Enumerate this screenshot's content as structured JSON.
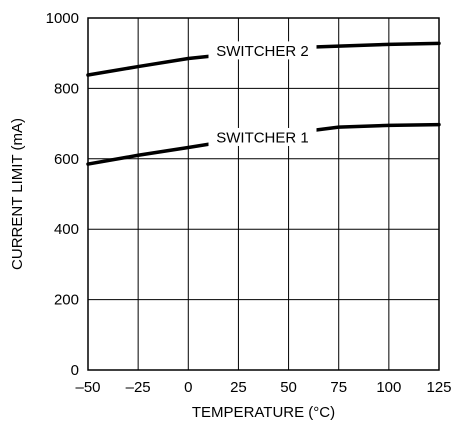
{
  "chart_data": {
    "type": "line",
    "title": "",
    "xlabel": "TEMPERATURE (°C)",
    "ylabel": "CURRENT LIMIT (mA)",
    "xlim": [
      -50,
      125
    ],
    "ylim": [
      0,
      1000
    ],
    "x_ticks": [
      -50,
      -25,
      0,
      25,
      50,
      75,
      100,
      125
    ],
    "x_tick_labels": [
      "–50",
      "–25",
      "0",
      "25",
      "50",
      "75",
      "100",
      "125"
    ],
    "y_ticks": [
      0,
      200,
      400,
      600,
      800,
      1000
    ],
    "y_tick_labels": [
      "0",
      "200",
      "400",
      "600",
      "800",
      "1000"
    ],
    "grid": true,
    "legend": "none",
    "series": [
      {
        "name": "SWITCHER 2",
        "x": [
          -50,
          -25,
          0,
          25,
          50,
          75,
          100,
          125
        ],
        "values": [
          838,
          862,
          885,
          900,
          915,
          920,
          925,
          928
        ]
      },
      {
        "name": "SWITCHER 1",
        "x": [
          -50,
          -25,
          0,
          25,
          50,
          75,
          100,
          125
        ],
        "values": [
          585,
          610,
          632,
          655,
          672,
          690,
          695,
          697
        ]
      }
    ]
  }
}
